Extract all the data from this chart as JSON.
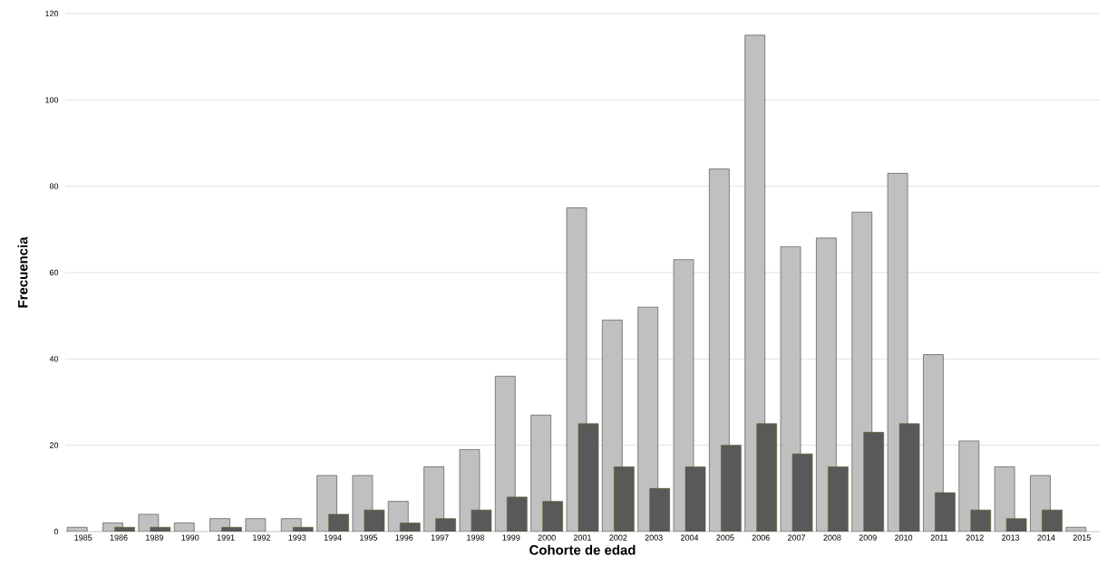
{
  "chart_data": {
    "type": "bar",
    "xlabel": "Cohorte de edad",
    "ylabel": "Frecuencia",
    "categories": [
      "1985",
      "1986",
      "1989",
      "1990",
      "1991",
      "1992",
      "1993",
      "1994",
      "1995",
      "1996",
      "1997",
      "1998",
      "1999",
      "2000",
      "2001",
      "2002",
      "2003",
      "2004",
      "2005",
      "2006",
      "2007",
      "2008",
      "2009",
      "2010",
      "2011",
      "2012",
      "2013",
      "2014",
      "2015"
    ],
    "series": [
      {
        "color": "#c0c0c0",
        "values": [
          1,
          2,
          4,
          2,
          3,
          3,
          3,
          13,
          13,
          7,
          15,
          19,
          36,
          27,
          75,
          49,
          52,
          63,
          84,
          115,
          66,
          68,
          74,
          83,
          41,
          21,
          15,
          13,
          1
        ]
      },
      {
        "color": "#595959",
        "values": [
          null,
          1,
          1,
          null,
          1,
          null,
          1,
          4,
          5,
          2,
          3,
          5,
          8,
          7,
          25,
          15,
          10,
          15,
          20,
          25,
          18,
          15,
          23,
          25,
          9,
          5,
          3,
          5,
          null
        ]
      }
    ],
    "ylim": [
      0,
      120
    ],
    "yticks": [
      0,
      20,
      40,
      60,
      80,
      100,
      120
    ],
    "grid": "y"
  }
}
